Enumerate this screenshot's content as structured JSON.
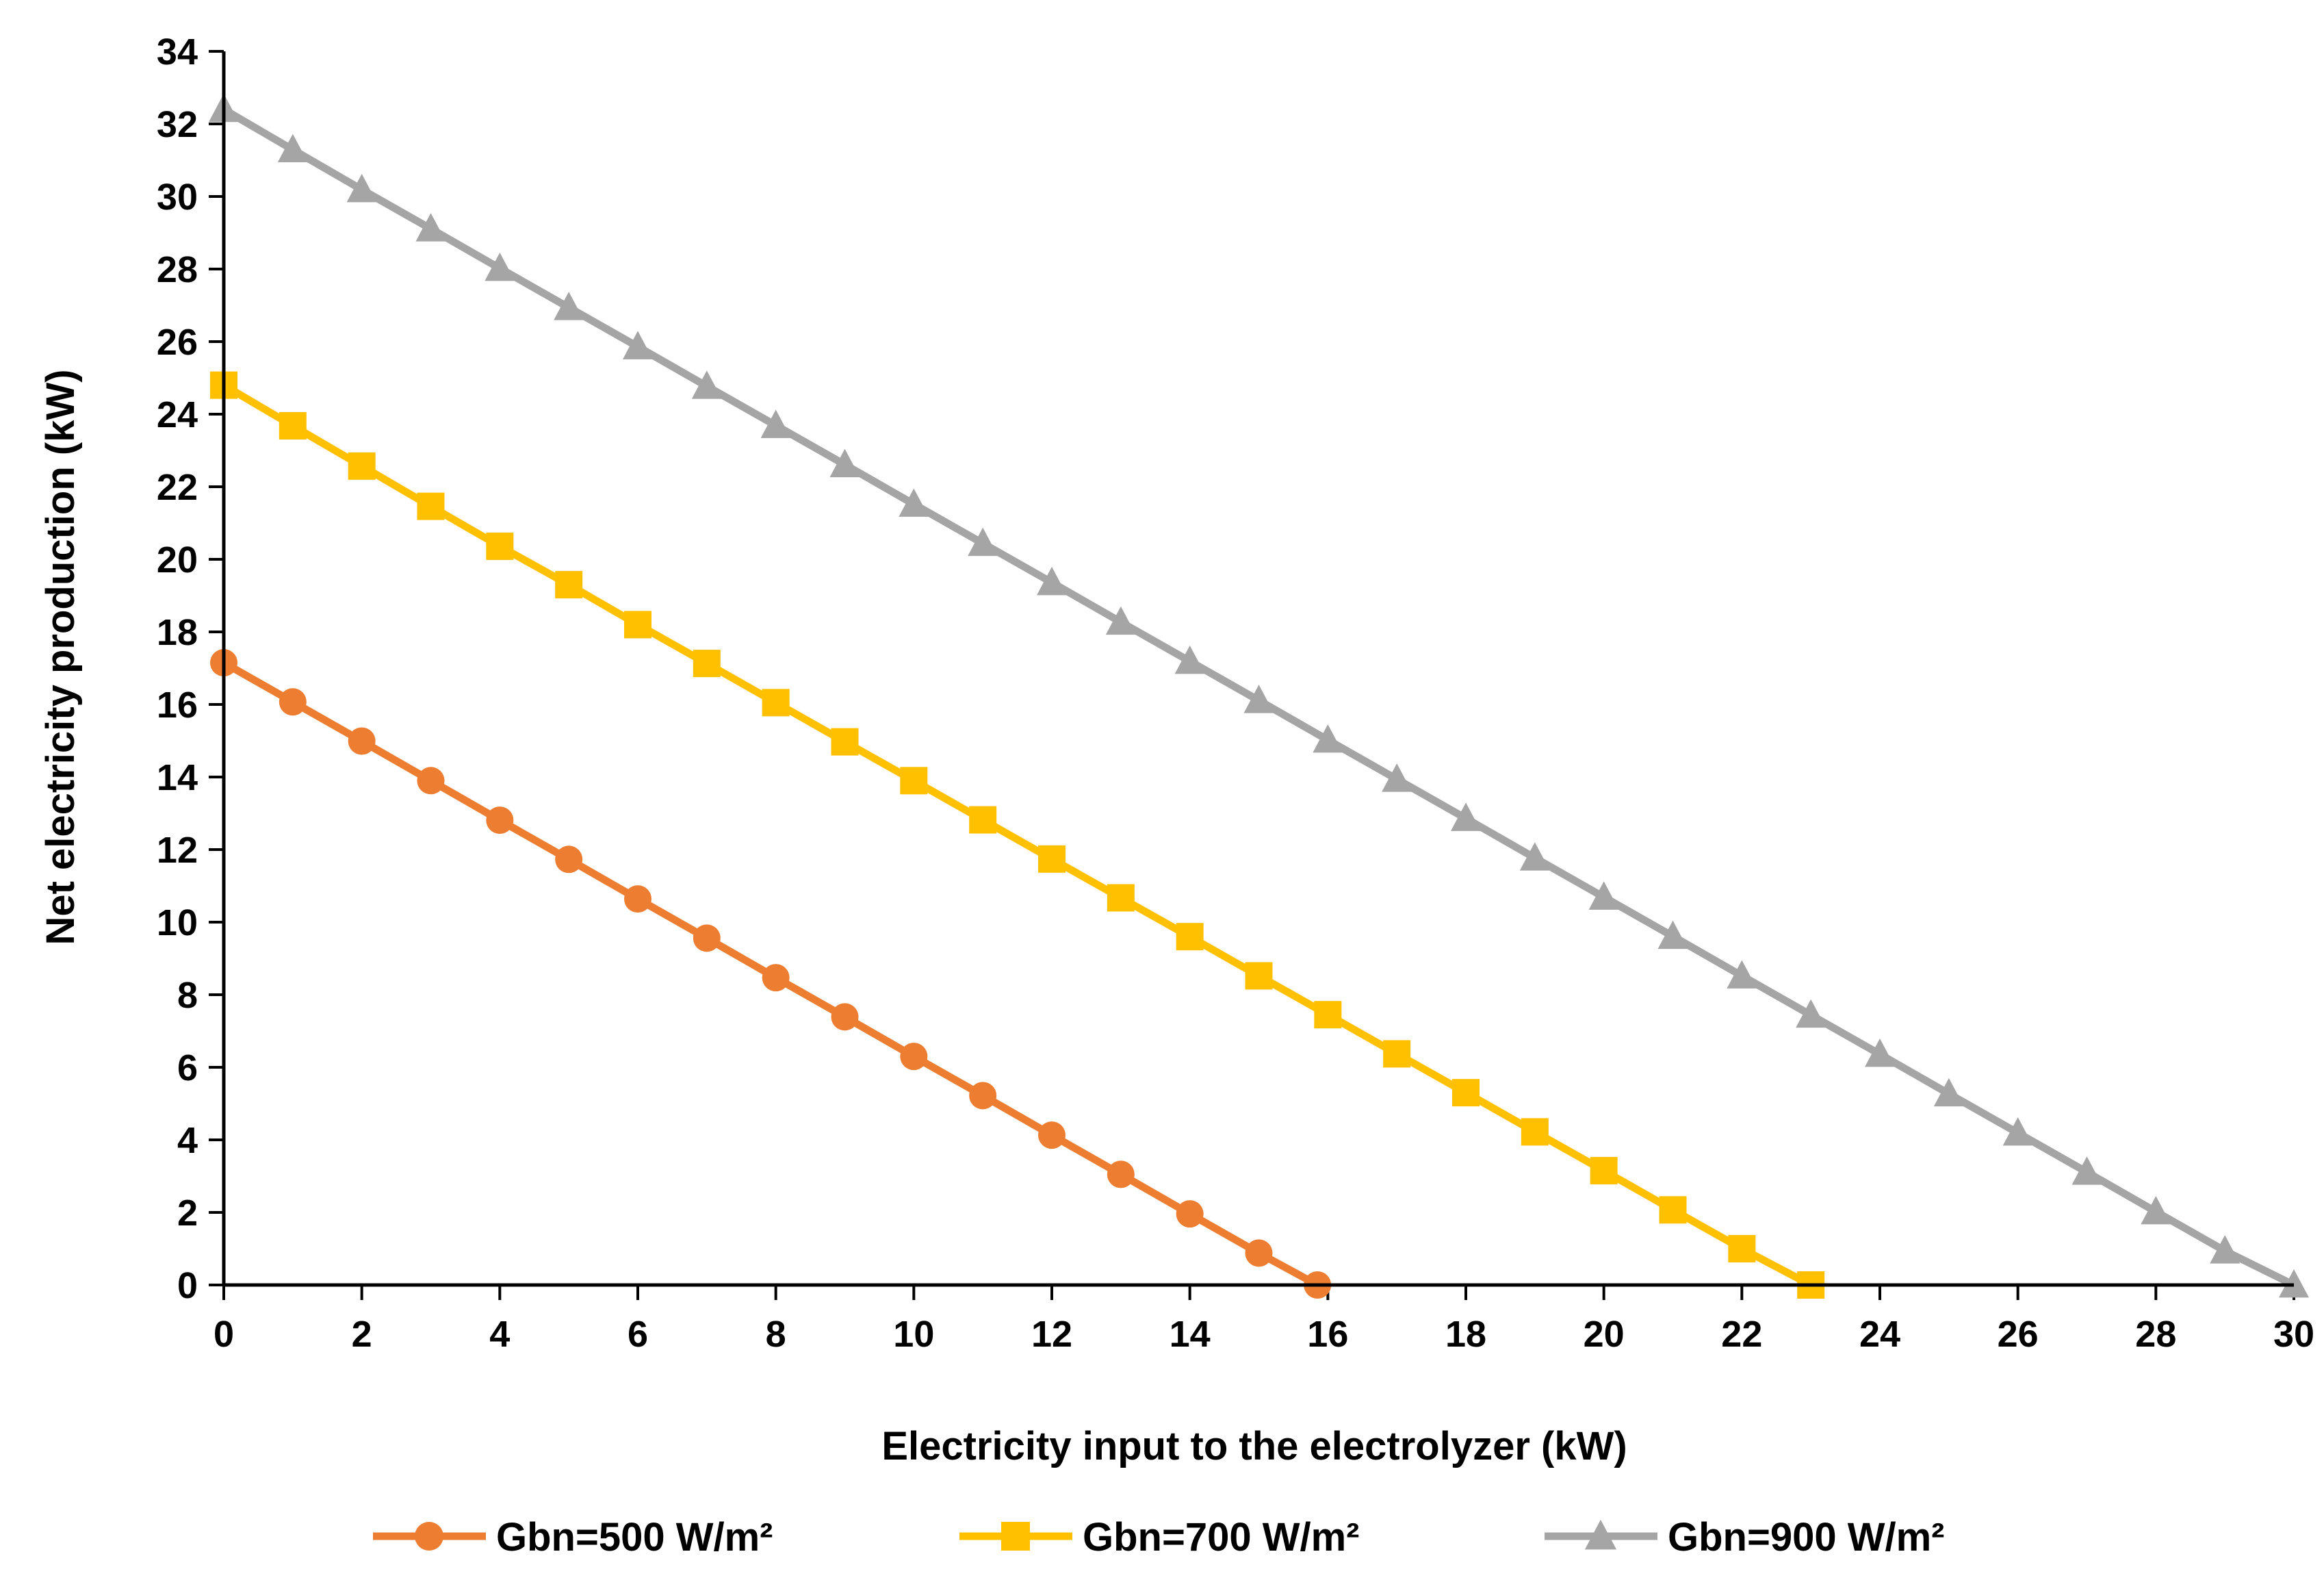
{
  "chart_data": {
    "type": "line",
    "title": "",
    "xlabel": "Electricity input to the electrolyzer (kW)",
    "ylabel": "Net electricity production (kW)",
    "xlim": [
      0,
      30
    ],
    "ylim": [
      0,
      34
    ],
    "xticks": [
      0,
      2,
      4,
      6,
      8,
      10,
      12,
      14,
      16,
      18,
      20,
      22,
      24,
      26,
      28,
      30
    ],
    "yticks": [
      0,
      2,
      4,
      6,
      8,
      10,
      12,
      14,
      16,
      18,
      20,
      22,
      24,
      26,
      28,
      30,
      32,
      34
    ],
    "grid": false,
    "legend_position": "bottom",
    "series": [
      {
        "name": "Gbn=500 W/m²",
        "color": "#ED7D31",
        "marker": "circle",
        "x": [
          0,
          1,
          2,
          3,
          4,
          5,
          6,
          7,
          8,
          9,
          10,
          11,
          12,
          13,
          14,
          15,
          15.85
        ],
        "values": [
          17.15,
          16.07,
          14.99,
          13.9,
          12.81,
          11.73,
          10.64,
          9.56,
          8.47,
          7.39,
          6.3,
          5.22,
          4.13,
          3.05,
          1.96,
          0.88,
          0
        ]
      },
      {
        "name": "Gbn=700 W/m²",
        "color": "#FFC000",
        "marker": "square",
        "x": [
          0,
          1,
          2,
          3,
          4,
          5,
          6,
          7,
          8,
          9,
          10,
          11,
          12,
          13,
          14,
          15,
          16,
          17,
          18,
          19,
          20,
          21,
          22,
          23
        ],
        "values": [
          24.8,
          23.68,
          22.57,
          21.46,
          20.36,
          19.3,
          18.2,
          17.13,
          16.05,
          14.97,
          13.9,
          12.82,
          11.74,
          10.67,
          9.6,
          8.52,
          7.45,
          6.37,
          5.3,
          4.22,
          3.15,
          2.07,
          1.0,
          0
        ]
      },
      {
        "name": "Gbn=900 W/m²",
        "color": "#A5A5A5",
        "marker": "triangle",
        "x": [
          0,
          1,
          2,
          3,
          4,
          5,
          6,
          7,
          8,
          9,
          10,
          11,
          12,
          13,
          14,
          15,
          16,
          17,
          18,
          19,
          20,
          21,
          22,
          23,
          24,
          25,
          26,
          27,
          28,
          29,
          30
        ],
        "values": [
          32.4,
          31.29,
          30.19,
          29.11,
          28.02,
          26.94,
          25.86,
          24.77,
          23.69,
          22.61,
          21.52,
          20.44,
          19.36,
          18.27,
          17.19,
          16.11,
          15.02,
          13.94,
          12.86,
          11.77,
          10.69,
          9.61,
          8.52,
          7.44,
          6.36,
          5.27,
          4.19,
          3.11,
          2.02,
          0.94,
          0
        ]
      }
    ]
  }
}
